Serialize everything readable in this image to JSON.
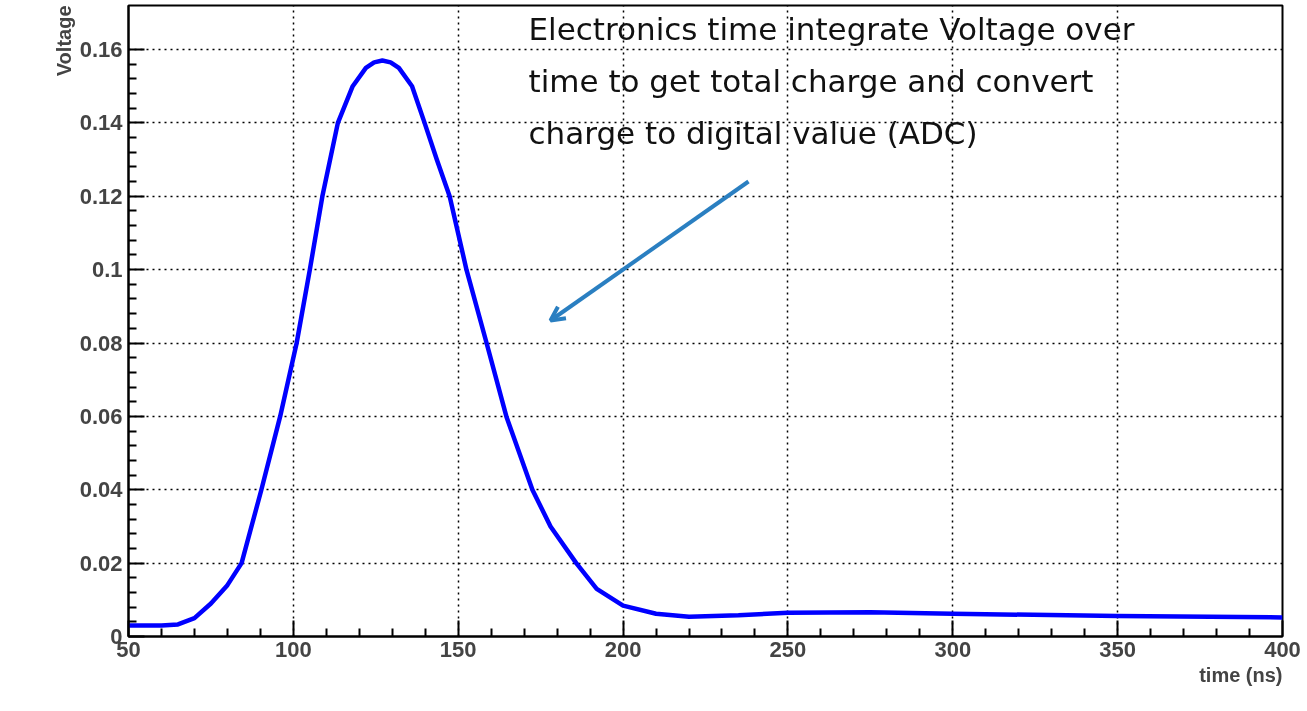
{
  "chart_data": {
    "type": "line",
    "xlabel": "time (ns)",
    "ylabel": "Voltage",
    "x": [
      50,
      60,
      65,
      70,
      75,
      80,
      84.3,
      90.3,
      96,
      101,
      105,
      108.8,
      113.5,
      118,
      122,
      124.5,
      127,
      129.5,
      132,
      136,
      139.8,
      143.5,
      147.4,
      152.5,
      158.6,
      164.6,
      172.5,
      178,
      185.8,
      192,
      200,
      210,
      220,
      235,
      250,
      275,
      300,
      350,
      400
    ],
    "series": [
      {
        "color": "#0000ff",
        "values": [
          0.003,
          0.003,
          0.0033,
          0.005,
          0.009,
          0.014,
          0.02,
          0.04,
          0.06,
          0.08,
          0.1,
          0.12,
          0.14,
          0.15,
          0.155,
          0.1565,
          0.157,
          0.1565,
          0.155,
          0.15,
          0.14,
          0.13,
          0.12,
          0.1,
          0.08,
          0.06,
          0.04,
          0.03,
          0.02,
          0.013,
          0.0084,
          0.0062,
          0.0054,
          0.0058,
          0.0065,
          0.0066,
          0.0062,
          0.0056,
          0.0052
        ]
      }
    ],
    "xlim": [
      50,
      400
    ],
    "ylim": [
      0,
      0.172
    ],
    "xticks": [
      50,
      100,
      150,
      200,
      250,
      300,
      350,
      400
    ],
    "yticks": [
      0,
      0.02,
      0.04,
      0.06,
      0.08,
      0.1,
      0.12,
      0.14,
      0.16
    ],
    "grid": true,
    "line_style": "solid",
    "marker": "none",
    "annotations": [
      "Electronics time integrate Voltage over\ntime to get total charge and convert\ncharge to digital value (ADC)"
    ]
  }
}
